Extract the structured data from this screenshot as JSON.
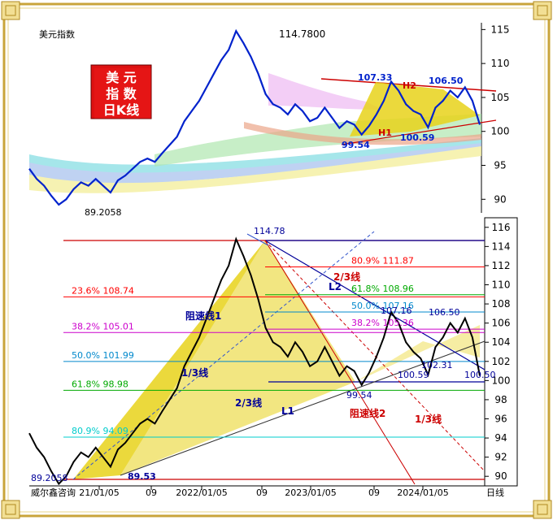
{
  "app_title": "美元指数",
  "badge": {
    "line1": "美 元",
    "line2": "指 数",
    "line3": "日K线"
  },
  "watermark": "威尔鑫咨询",
  "period_label": "日线",
  "colors": {
    "price": "#0022cc",
    "price_lower": "#000000",
    "triangle_fill": "#e8d21a",
    "badge_bg": "#dd1111",
    "badge_text": "#ffffff",
    "frame_gold": "#c9a43a"
  },
  "top_chart": {
    "y_ticks": [
      "115",
      "110",
      "105",
      "100",
      "95",
      "90"
    ],
    "annotations": {
      "high": "114.7800",
      "low": "89.2058",
      "a1": "107.33",
      "a2": "106.50",
      "h2": "H2",
      "h1": "H1",
      "b1": "99.54",
      "b2": "100.59"
    }
  },
  "bottom_chart": {
    "y_ticks": [
      "116",
      "114",
      "112",
      "110",
      "108",
      "106",
      "104",
      "102",
      "100",
      "98",
      "96",
      "94",
      "92",
      "90"
    ],
    "x_ticks": [
      "21/01/05",
      "09",
      "2022/01/05",
      "09",
      "2023/01/05",
      "09",
      "2024/01/05"
    ],
    "fib_left": [
      {
        "label": "23.6%  108.74",
        "color": "#ff0000"
      },
      {
        "label": "38.2%  105.01",
        "color": "#cc00cc"
      },
      {
        "label": "50.0%  101.99",
        "color": "#0088cc"
      },
      {
        "label": "61.8%  98.98",
        "color": "#00aa00"
      },
      {
        "label": "80.9%  94.09",
        "color": "#00cccc"
      }
    ],
    "fib_right": [
      {
        "label": "80.9%  111.87",
        "color": "#ff0000"
      },
      {
        "label": "61.8%  108.96",
        "color": "#00aa00"
      },
      {
        "label": "50.0%  107.16",
        "color": "#0088cc"
      },
      {
        "label": "38.2%  105.36",
        "color": "#cc00cc"
      }
    ],
    "labels": {
      "high": "114.78",
      "low_left": "89.2058",
      "low2": "89.53",
      "b1": "99.54",
      "b2": "100.59",
      "p107": "107.16",
      "p106": "106.50",
      "p102": "102.31",
      "p100": "100.50",
      "resist1": "阻速线1",
      "resist2": "阻速线2",
      "third1": "1/3线",
      "twothird1": "2/3线",
      "twothird2": "2/3线",
      "third2": "1/3线",
      "l1": "L1",
      "l2": "L2"
    }
  },
  "chart_data": [
    {
      "type": "line",
      "title": "美元指数",
      "y_range": [
        88,
        116
      ],
      "ticks_y": [
        115,
        110,
        105,
        100,
        95,
        90
      ],
      "series": [
        {
          "values": [
            94.5,
            93.0,
            92.0,
            90.5,
            89.21,
            90.0,
            91.5,
            92.5,
            92.0,
            93.0,
            92.0,
            91.0,
            92.8,
            93.5,
            94.5,
            95.5,
            96.0,
            95.5,
            96.8,
            98.0,
            99.2,
            101.5,
            103.0,
            104.5,
            106.5,
            108.5,
            110.5,
            112.0,
            114.78,
            113.0,
            111.0,
            108.5,
            105.5,
            104.0,
            103.5,
            102.5,
            104.0,
            103.0,
            101.5,
            102.0,
            103.5,
            102.0,
            100.5,
            101.5,
            101.0,
            99.54,
            100.8,
            102.5,
            104.5,
            107.33,
            106.0,
            104.0,
            103.0,
            102.5,
            100.59,
            103.5,
            104.5,
            106.0,
            105.0,
            106.5,
            104.5,
            101.0
          ]
        }
      ]
    },
    {
      "type": "line",
      "y_range": [
        89,
        117
      ],
      "ticks_y": [
        116,
        114,
        112,
        110,
        108,
        106,
        104,
        102,
        100,
        98,
        96,
        94,
        92,
        90
      ],
      "fib_levels": [
        108.74,
        105.01,
        101.99,
        98.98,
        94.09,
        111.87,
        108.96,
        107.16,
        105.36
      ],
      "series": [
        {
          "values": [
            94.5,
            93.0,
            92.0,
            90.5,
            89.21,
            90.0,
            91.5,
            92.5,
            92.0,
            93.0,
            92.0,
            91.0,
            92.8,
            93.5,
            94.5,
            95.5,
            96.0,
            95.5,
            96.8,
            98.0,
            99.2,
            101.5,
            103.0,
            104.5,
            106.5,
            108.5,
            110.5,
            112.0,
            114.78,
            113.0,
            111.0,
            108.5,
            105.5,
            104.0,
            103.5,
            102.5,
            104.0,
            103.0,
            101.5,
            102.0,
            103.5,
            102.0,
            100.5,
            101.5,
            101.0,
            99.54,
            100.8,
            102.5,
            104.5,
            107.16,
            106.0,
            104.0,
            103.0,
            102.31,
            100.59,
            103.5,
            104.5,
            106.0,
            105.0,
            106.5,
            104.5,
            100.5
          ]
        }
      ]
    }
  ]
}
